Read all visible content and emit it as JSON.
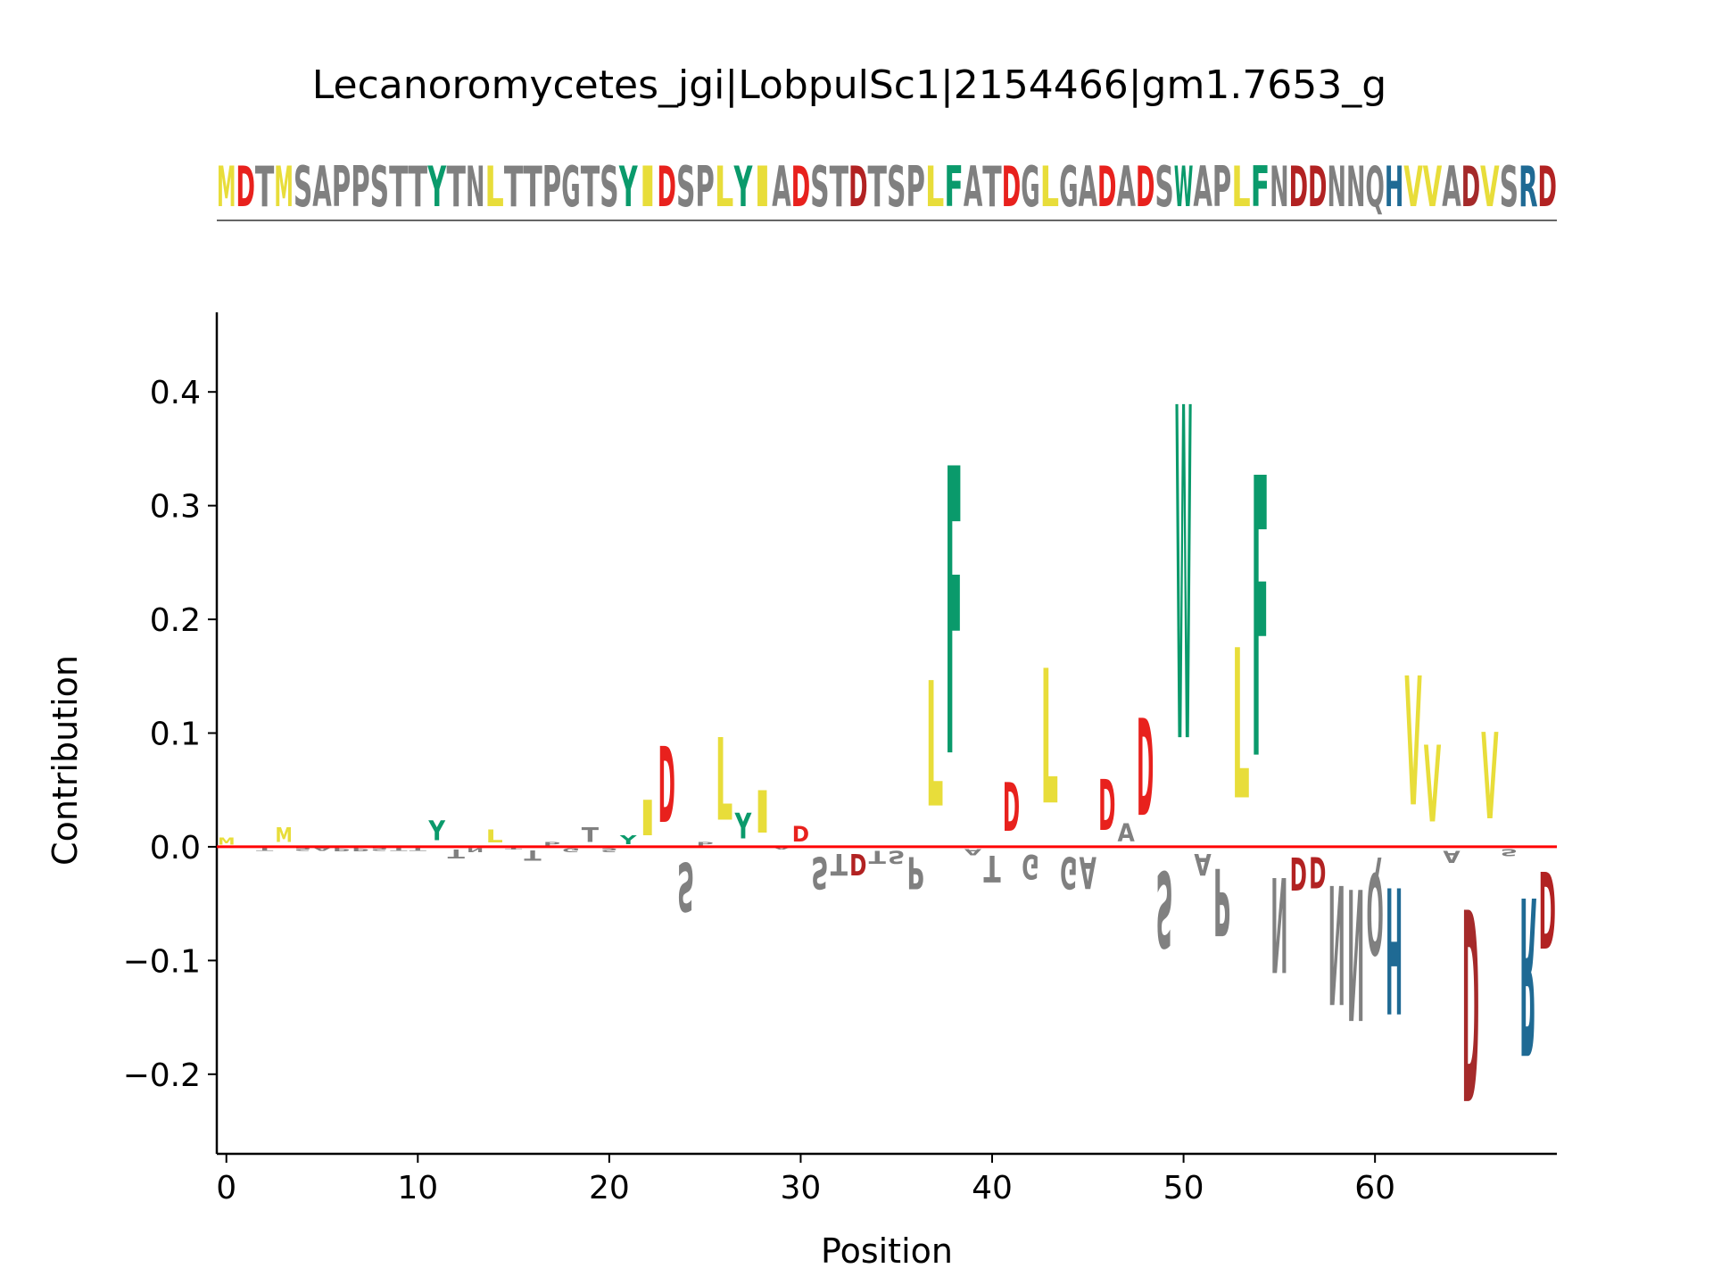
{
  "chart_data": {
    "type": "sequence-logo",
    "title": "Lecanoromycetes_jgi|LobpulSc1|2154466|gm1.7653_g",
    "sequence": "MDTMSAPPSTTYTNLTTPGTSYIDSPLYIADSTDTSPLFATDGLGADADSWAPLFNDDNNQHVVADVSRD",
    "xlabel": "Position",
    "ylabel": "Contribution",
    "xlim": [
      -0.5,
      69.5
    ],
    "ylim": [
      -0.27,
      0.47
    ],
    "xticks": [
      "0",
      "10",
      "20",
      "30",
      "40",
      "50",
      "60"
    ],
    "yticks": [
      "0.4",
      "0.3",
      "0.2",
      "0.1",
      "0.0",
      "−0.1",
      "−0.2"
    ],
    "ytick_values": [
      0.4,
      0.3,
      0.2,
      0.1,
      0.0,
      -0.1,
      -0.2
    ],
    "colors": {
      "hydrophobic": "#e8dd3a",
      "acidic": "#e8211d",
      "polar": "#0a9a6b",
      "basic": "#1f6fb2",
      "other": "#808080",
      "zero_line": "#ff0000"
    },
    "logo": [
      {
        "pos": 0,
        "letter": "M",
        "value": 0.01,
        "color": "#e8dd3a"
      },
      {
        "pos": 1,
        "letter": "D",
        "value": 0.0,
        "color": "#e8211d"
      },
      {
        "pos": 2,
        "letter": "T",
        "value": -0.004,
        "color": "#808080"
      },
      {
        "pos": 3,
        "letter": "M",
        "value": 0.02,
        "color": "#e8dd3a"
      },
      {
        "pos": 4,
        "letter": "S",
        "value": -0.004,
        "color": "#808080"
      },
      {
        "pos": 5,
        "letter": "A",
        "value": -0.004,
        "color": "#808080"
      },
      {
        "pos": 6,
        "letter": "P",
        "value": -0.005,
        "color": "#808080"
      },
      {
        "pos": 7,
        "letter": "P",
        "value": -0.005,
        "color": "#808080"
      },
      {
        "pos": 8,
        "letter": "S",
        "value": -0.004,
        "color": "#808080"
      },
      {
        "pos": 9,
        "letter": "T",
        "value": -0.004,
        "color": "#808080"
      },
      {
        "pos": 10,
        "letter": "T",
        "value": -0.004,
        "color": "#808080"
      },
      {
        "pos": 11,
        "letter": "Y",
        "value": 0.028,
        "color": "#0a9a6b"
      },
      {
        "pos": 12,
        "letter": "T",
        "value": -0.012,
        "color": "#808080"
      },
      {
        "pos": 13,
        "letter": "N",
        "value": -0.006,
        "color": "#808080"
      },
      {
        "pos": 14,
        "letter": "L",
        "value": 0.018,
        "color": "#e8dd3a"
      },
      {
        "pos": 15,
        "letter": "T",
        "value": -0.003,
        "color": "#808080"
      },
      {
        "pos": 16,
        "letter": "T",
        "value": -0.015,
        "color": "#808080"
      },
      {
        "pos": 17,
        "letter": "P",
        "value": 0.005,
        "color": "#808080"
      },
      {
        "pos": 18,
        "letter": "G",
        "value": -0.006,
        "color": "#808080"
      },
      {
        "pos": 19,
        "letter": "T",
        "value": 0.02,
        "color": "#808080"
      },
      {
        "pos": 20,
        "letter": "S",
        "value": -0.006,
        "color": "#808080"
      },
      {
        "pos": 21,
        "letter": "Y",
        "value": 0.012,
        "color": "#0a9a6b"
      },
      {
        "pos": 22,
        "letter": "I",
        "value": 0.05,
        "color": "#e8dd3a"
      },
      {
        "pos": 23,
        "letter": "D",
        "value": 0.107,
        "color": "#e8211d"
      },
      {
        "pos": 24,
        "letter": "S",
        "value": -0.069,
        "color": "#808080"
      },
      {
        "pos": 25,
        "letter": "P",
        "value": 0.005,
        "color": "#808080"
      },
      {
        "pos": 26,
        "letter": "L",
        "value": 0.116,
        "color": "#e8dd3a"
      },
      {
        "pos": 27,
        "letter": "Y",
        "value": 0.036,
        "color": "#0a9a6b"
      },
      {
        "pos": 28,
        "letter": "I",
        "value": 0.06,
        "color": "#e8dd3a"
      },
      {
        "pos": 29,
        "letter": "A",
        "value": -0.003,
        "color": "#808080"
      },
      {
        "pos": 30,
        "letter": "D",
        "value": 0.022,
        "color": "#e8211d"
      },
      {
        "pos": 31,
        "letter": "S",
        "value": -0.045,
        "color": "#808080"
      },
      {
        "pos": 32,
        "letter": "T",
        "value": -0.03,
        "color": "#808080"
      },
      {
        "pos": 33,
        "letter": "D",
        "value": -0.03,
        "color": "#b22222"
      },
      {
        "pos": 34,
        "letter": "T",
        "value": -0.018,
        "color": "#808080"
      },
      {
        "pos": 35,
        "letter": "S",
        "value": -0.018,
        "color": "#808080"
      },
      {
        "pos": 36,
        "letter": "P",
        "value": -0.045,
        "color": "#808080"
      },
      {
        "pos": 37,
        "letter": "L",
        "value": 0.177,
        "color": "#e8dd3a"
      },
      {
        "pos": 38,
        "letter": "F",
        "value": 0.405,
        "color": "#0a9a6b"
      },
      {
        "pos": 39,
        "letter": "A",
        "value": -0.009,
        "color": "#808080"
      },
      {
        "pos": 40,
        "letter": "T",
        "value": -0.038,
        "color": "#808080"
      },
      {
        "pos": 41,
        "letter": "D",
        "value": 0.069,
        "color": "#e8211d"
      },
      {
        "pos": 42,
        "letter": "G",
        "value": -0.034,
        "color": "#808080"
      },
      {
        "pos": 43,
        "letter": "L",
        "value": 0.19,
        "color": "#e8dd3a"
      },
      {
        "pos": 44,
        "letter": "G",
        "value": -0.045,
        "color": "#808080"
      },
      {
        "pos": 45,
        "letter": "A",
        "value": -0.045,
        "color": "#808080"
      },
      {
        "pos": 46,
        "letter": "D",
        "value": 0.072,
        "color": "#e8211d"
      },
      {
        "pos": 47,
        "letter": "A",
        "value": 0.025,
        "color": "#808080"
      },
      {
        "pos": 48,
        "letter": "D",
        "value": 0.137,
        "color": "#e8211d"
      },
      {
        "pos": 49,
        "letter": "S",
        "value": -0.107,
        "color": "#808080"
      },
      {
        "pos": 50,
        "letter": "W",
        "value": 0.47,
        "color": "#0a9a6b"
      },
      {
        "pos": 51,
        "letter": "A",
        "value": -0.03,
        "color": "#808080"
      },
      {
        "pos": 52,
        "letter": "P",
        "value": -0.095,
        "color": "#808080"
      },
      {
        "pos": 53,
        "letter": "L",
        "value": 0.212,
        "color": "#e8dd3a"
      },
      {
        "pos": 54,
        "letter": "F",
        "value": 0.395,
        "color": "#0a9a6b"
      },
      {
        "pos": 55,
        "letter": "N",
        "value": -0.134,
        "color": "#808080"
      },
      {
        "pos": 56,
        "letter": "D",
        "value": -0.047,
        "color": "#b22222"
      },
      {
        "pos": 57,
        "letter": "D",
        "value": -0.044,
        "color": "#b22222"
      },
      {
        "pos": 58,
        "letter": "N",
        "value": -0.168,
        "color": "#808080"
      },
      {
        "pos": 59,
        "letter": "N",
        "value": -0.185,
        "color": "#808080"
      },
      {
        "pos": 60,
        "letter": "Q",
        "value": -0.115,
        "color": "#808080"
      },
      {
        "pos": 61,
        "letter": "H",
        "value": -0.178,
        "color": "#1f6a94"
      },
      {
        "pos": 62,
        "letter": "V",
        "value": 0.182,
        "color": "#e8dd3a"
      },
      {
        "pos": 63,
        "letter": "V",
        "value": 0.108,
        "color": "#e8dd3a"
      },
      {
        "pos": 64,
        "letter": "A",
        "value": -0.017,
        "color": "#808080"
      },
      {
        "pos": 65,
        "letter": "D",
        "value": -0.27,
        "color": "#a52a2a"
      },
      {
        "pos": 66,
        "letter": "V",
        "value": 0.122,
        "color": "#e8dd3a"
      },
      {
        "pos": 67,
        "letter": "S",
        "value": -0.01,
        "color": "#808080"
      },
      {
        "pos": 68,
        "letter": "R",
        "value": -0.222,
        "color": "#1f6a94"
      },
      {
        "pos": 69,
        "letter": "D",
        "value": -0.108,
        "color": "#b22222"
      }
    ]
  }
}
